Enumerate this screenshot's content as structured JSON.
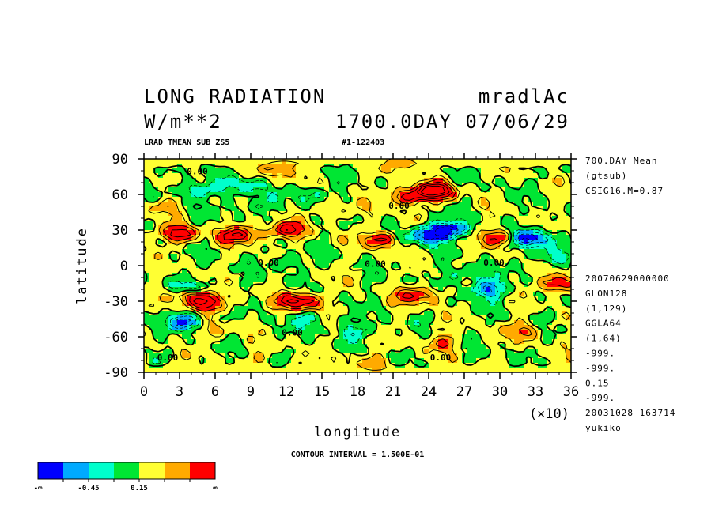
{
  "header": {
    "title_left": "LONG RADIATION",
    "title_right": "mradlAc",
    "units": "W/m**2",
    "date": "1700.0DAY 07/06/29",
    "sub_left": "LRAD TMEAN SUB ZS5",
    "sub_right": "#1-122403"
  },
  "side_info": {
    "top": [
      "700.DAY Mean",
      "(gtsub)",
      "CSIG16.M=0.87"
    ],
    "bottom": [
      "20070629000000",
      "GLON128",
      "(1,129)",
      "GGLA64",
      "(1,64)",
      "-999.",
      "-999.",
      "0.15",
      "-999.",
      "20031028 163714",
      "yukiko"
    ]
  },
  "footer": {
    "contour_interval": "CONTOUR INTERVAL = 1.500E-01"
  },
  "legend": {
    "colors": [
      "#0000ff",
      "#00aaff",
      "#00ffcc",
      "#00e633",
      "#ffff33",
      "#ffaa00",
      "#ff0000"
    ],
    "labels": [
      "-∞",
      "-0.45",
      "0.15",
      "∞"
    ]
  },
  "chart_data": {
    "type": "heatmap",
    "title": "LONG RADIATION",
    "xlabel": "longitude",
    "ylabel": "latitude",
    "x_multiplier_label": "(×10)",
    "xlim": [
      0,
      36
    ],
    "ylim": [
      -90,
      90
    ],
    "x_ticks": [
      "0",
      "3",
      "6",
      "9",
      "12",
      "15",
      "18",
      "21",
      "24",
      "27",
      "30",
      "33",
      "36"
    ],
    "y_ticks": [
      "90",
      "60",
      "30",
      "0",
      "-30",
      "-60",
      "-90"
    ],
    "contour_labels": [
      "0.00",
      "0.00",
      "0.00",
      "0.00",
      "0.00",
      "0.00",
      "0.00",
      "0.00"
    ],
    "contour_interval": 0.15,
    "levels": [
      -0.45,
      -0.3,
      -0.15,
      0.0,
      0.15,
      0.3
    ],
    "features": [
      {
        "lon": 24.5,
        "lat": 63,
        "value": 0.9
      },
      {
        "lon": 22,
        "lat": 58,
        "value": 0.5
      },
      {
        "lon": 8,
        "lat": 26,
        "value": 0.6
      },
      {
        "lon": 3,
        "lat": 27,
        "value": 0.5
      },
      {
        "lon": 12,
        "lat": 30,
        "value": 0.5
      },
      {
        "lon": 20,
        "lat": 22,
        "value": 0.5
      },
      {
        "lon": 30,
        "lat": 24,
        "value": 0.5
      },
      {
        "lon": 25.5,
        "lat": 30,
        "value": -0.7
      },
      {
        "lon": 32.5,
        "lat": 23,
        "value": -0.7
      },
      {
        "lon": 23.5,
        "lat": 25,
        "value": -0.5
      },
      {
        "lon": 4,
        "lat": -25,
        "value": 0.6
      },
      {
        "lon": 13,
        "lat": -30,
        "value": 0.7
      },
      {
        "lon": 5.5,
        "lat": -32,
        "value": 0.5
      },
      {
        "lon": 23,
        "lat": -25,
        "value": 0.5
      },
      {
        "lon": 35,
        "lat": -15,
        "value": 0.5
      },
      {
        "lon": 29,
        "lat": -20,
        "value": -0.5
      },
      {
        "lon": 3.5,
        "lat": -47,
        "value": -0.5
      },
      {
        "lon": 4,
        "lat": -20,
        "value": -0.4
      },
      {
        "lon": 11.5,
        "lat": 82,
        "value": 0.3
      },
      {
        "lon": 22,
        "lat": 85,
        "value": 0.2
      },
      {
        "lon": 1.5,
        "lat": 50,
        "value": 0.25
      },
      {
        "lon": 16,
        "lat": 47,
        "value": 0.2
      },
      {
        "lon": 4.5,
        "lat": 64,
        "value": -0.35
      },
      {
        "lon": 8.5,
        "lat": 68,
        "value": -0.3
      },
      {
        "lon": 14,
        "lat": 60,
        "value": -0.25
      },
      {
        "lon": 25,
        "lat": -65,
        "value": 0.25
      },
      {
        "lon": 32,
        "lat": -55,
        "value": 0.3
      },
      {
        "lon": 19,
        "lat": -82,
        "value": 0.2
      },
      {
        "lon": 10,
        "lat": -77,
        "value": 0.1
      },
      {
        "lon": 6,
        "lat": -55,
        "value": 0.2
      },
      {
        "lon": 18,
        "lat": -55,
        "value": -0.25
      },
      {
        "lon": 14,
        "lat": -45,
        "value": -0.2
      },
      {
        "lon": 34,
        "lat": 8,
        "value": -0.25
      },
      {
        "lon": 12,
        "lat": 3,
        "value": -0.2
      },
      {
        "lon": 9,
        "lat": 50,
        "value": -0.2
      },
      {
        "lon": 27,
        "lat": -8,
        "value": -0.25
      }
    ]
  }
}
